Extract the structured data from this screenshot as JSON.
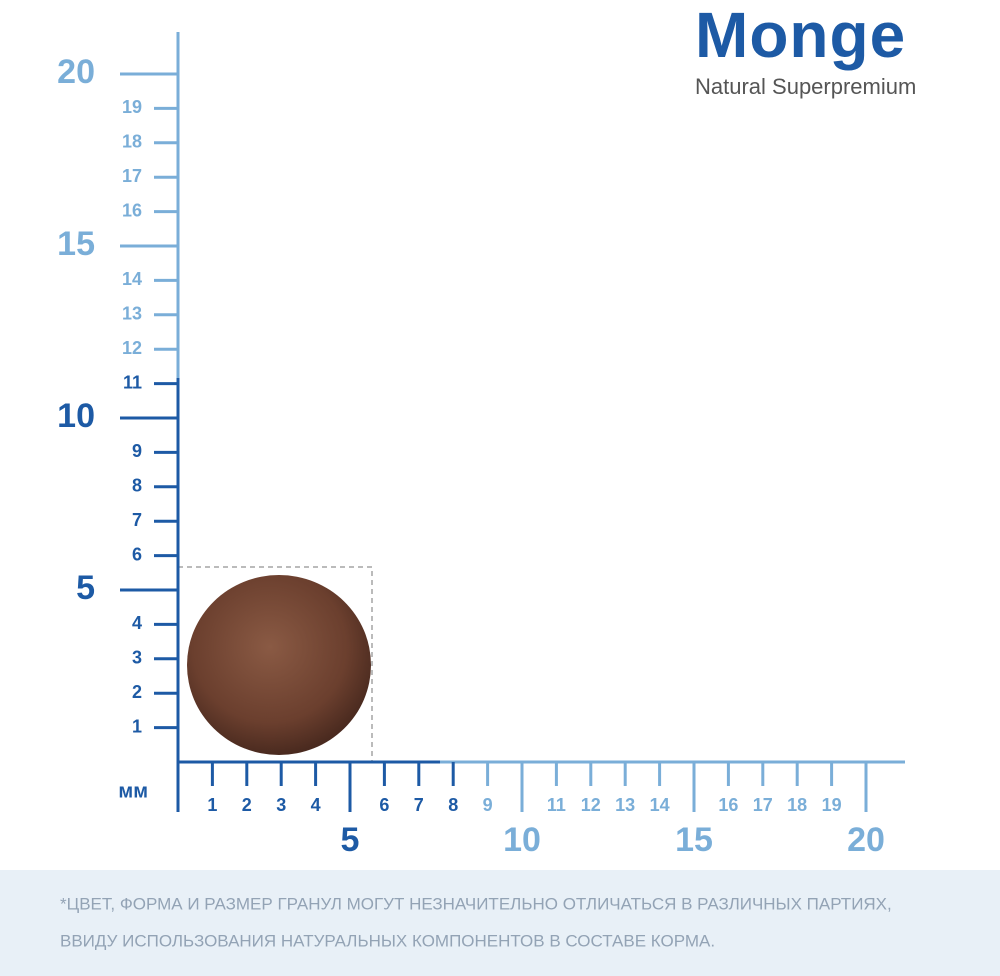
{
  "logo": {
    "brand": "Monge",
    "tagline": "Natural Superpremium"
  },
  "ruler": {
    "unit": "мм",
    "x_minor": [
      1,
      2,
      3,
      4,
      6,
      7,
      8,
      9,
      11,
      12,
      13,
      14,
      16,
      17,
      18,
      19
    ],
    "x_major": [
      5,
      10,
      15,
      20
    ],
    "y_minor": [
      1,
      2,
      3,
      4,
      6,
      7,
      8,
      9,
      11,
      12,
      13,
      14,
      16,
      17,
      18,
      19
    ],
    "y_major": [
      5,
      10,
      15,
      20
    ]
  },
  "footnote": [
    "*ЦВЕТ, ФОРМА И РАЗМЕР ГРАНУЛ МОГУТ НЕЗНАЧИТЕЛЬНО ОТЛИЧАТЬСЯ В РАЗЛИЧНЫХ ПАРТИЯХ,",
    "ВВИДУ ИСПОЛЬЗОВАНИЯ НАТУРАЛЬНЫХ КОМПОНЕНТОВ В СОСТАВЕ КОРМА."
  ]
}
